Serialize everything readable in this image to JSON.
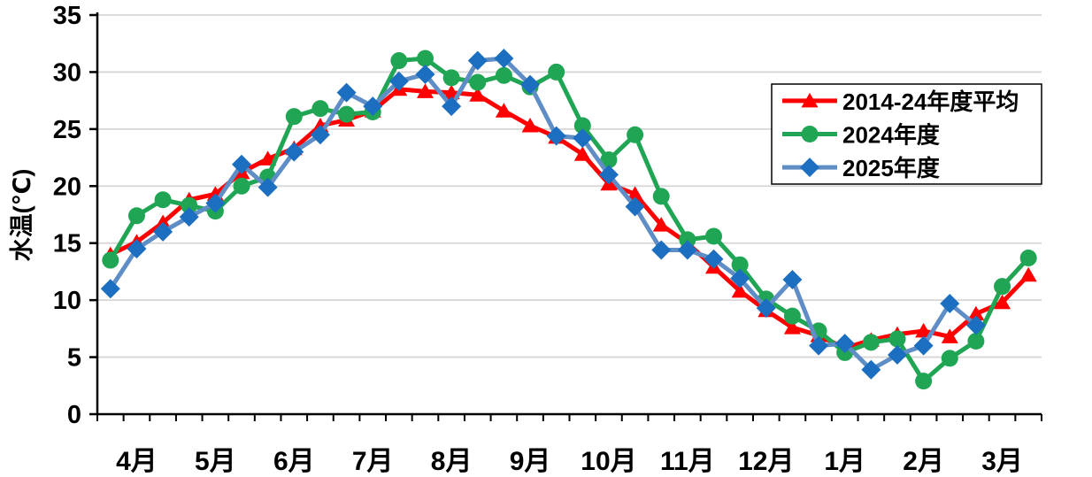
{
  "colors": {
    "background": "#FFFFFF",
    "grid": "#D6D6D6",
    "axis": "#000000",
    "text": "#000000",
    "legend_border": "#000000",
    "red_series": "#FF0000",
    "green_series": "#1FA554",
    "blue_line": "#5F8DC6",
    "blue_marker": "#1C6FC0"
  },
  "chart_data": {
    "type": "line",
    "title": "",
    "xlabel": "",
    "ylabel": "水温(℃)",
    "ylim": [
      0,
      35
    ],
    "ytick_interval": 5,
    "ytick_labels": [
      "0",
      "5",
      "10",
      "15",
      "20",
      "25",
      "30",
      "35"
    ],
    "grid": true,
    "legend_position": "top-right",
    "months": [
      "4月",
      "5月",
      "6月",
      "7月",
      "8月",
      "9月",
      "10月",
      "11月",
      "12月",
      "1月",
      "2月",
      "3月"
    ],
    "points_per_month": 3,
    "x_periods": "each month has 3 points (early/mid/late ten-day periods)",
    "series": [
      {
        "name": "2014-24年度平均",
        "marker": "triangle",
        "color": "#FF0000",
        "line_color": "#FF0000",
        "values": [
          14.0,
          15.1,
          16.8,
          18.8,
          19.3,
          21.2,
          22.4,
          23.3,
          25.3,
          25.8,
          26.6,
          28.5,
          28.3,
          28.2,
          28.0,
          26.6,
          25.3,
          24.3,
          22.8,
          20.2,
          19.3,
          16.6,
          15.0,
          12.9,
          10.8,
          9.1,
          7.6,
          6.9,
          5.8,
          6.5,
          7.0,
          7.3,
          6.8,
          8.8,
          9.8,
          12.2
        ]
      },
      {
        "name": "2024年度",
        "marker": "circle",
        "color": "#1FA554",
        "line_color": "#1FA554",
        "values": [
          13.5,
          17.4,
          18.8,
          18.3,
          17.8,
          20.0,
          20.8,
          26.1,
          26.8,
          26.3,
          26.5,
          31.0,
          31.2,
          29.5,
          29.1,
          29.7,
          28.7,
          30.0,
          25.3,
          22.3,
          24.5,
          19.1,
          15.3,
          15.6,
          13.1,
          10.1,
          8.6,
          7.3,
          5.4,
          6.3,
          6.6,
          2.9,
          4.9,
          6.4,
          11.2,
          13.7
        ]
      },
      {
        "name": "2025年度",
        "marker": "diamond",
        "color": "#1C6FC0",
        "line_color": "#5F8DC6",
        "values": [
          11.0,
          14.5,
          16.0,
          17.3,
          18.5,
          21.9,
          19.9,
          23.0,
          24.5,
          28.2,
          27.0,
          29.2,
          29.8,
          27.0,
          31.0,
          31.2,
          28.9,
          24.4,
          24.2,
          21.0,
          18.2,
          14.4,
          14.4,
          13.6,
          11.9,
          9.3,
          11.8,
          6.0,
          6.2,
          3.9,
          5.2,
          6.0,
          9.7,
          7.8
        ]
      }
    ]
  }
}
